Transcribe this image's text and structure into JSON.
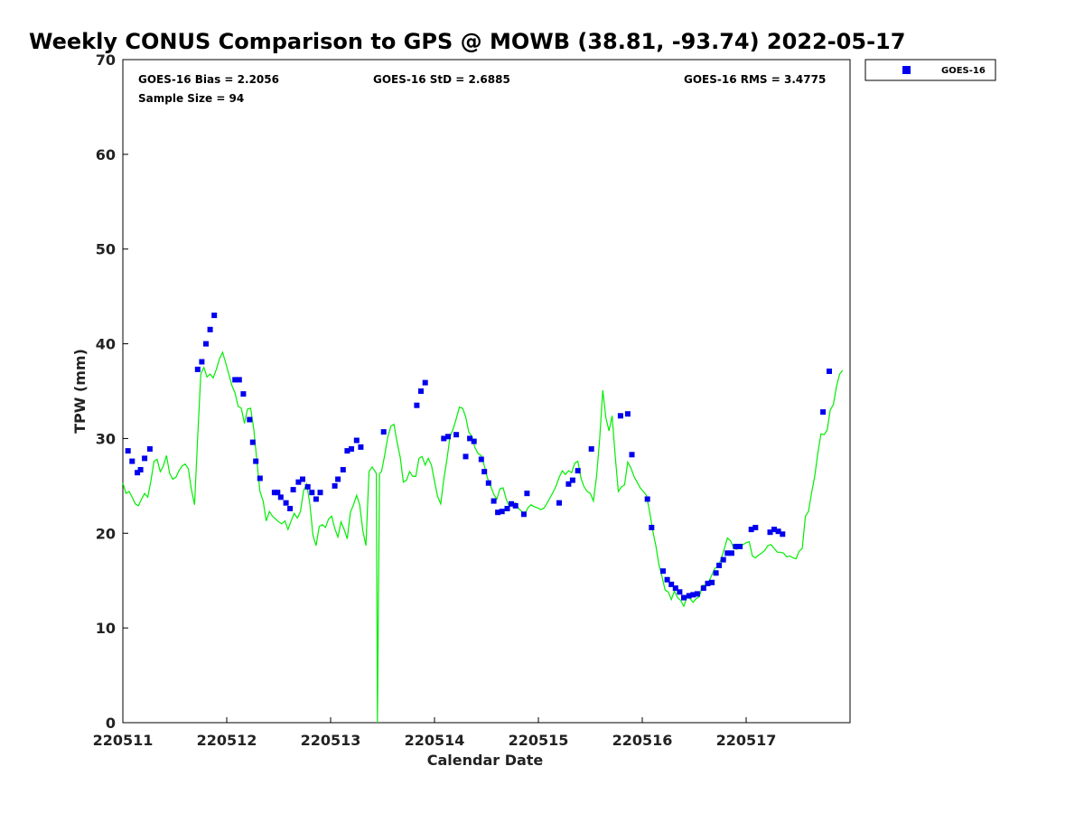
{
  "chart_data": {
    "type": "scatter",
    "title": "Weekly CONUS Comparison to GPS @ MOWB (38.81, -93.74) 2022-05-17",
    "xlabel": "Calendar Date",
    "ylabel": "TPW (mm)",
    "xlim": [
      220511,
      220518
    ],
    "ylim": [
      0,
      70
    ],
    "x_tick_values": [
      220511,
      220512,
      220513,
      220514,
      220515,
      220516,
      220517
    ],
    "x_tick_labels": [
      "220511",
      "220512",
      "220513",
      "220514",
      "220515",
      "220516",
      "220517"
    ],
    "y_tick_values": [
      0,
      10,
      20,
      30,
      40,
      50,
      60,
      70
    ],
    "y_tick_labels": [
      "0",
      "10",
      "20",
      "30",
      "40",
      "50",
      "60",
      "70"
    ],
    "grid": false,
    "legend_position": "top-right",
    "stats": {
      "bias": "GOES-16 Bias = 2.2056",
      "std": "GOES-16 StD = 2.6885",
      "rms": "GOES-16 RMS = 3.4775",
      "sample_size": "Sample Size = 94"
    },
    "series": [
      {
        "name": "GOES-16",
        "kind": "scatter",
        "color": "#0000ee",
        "marker": "square",
        "x": [
          220511.05,
          220511.09,
          220511.14,
          220511.17,
          220511.21,
          220511.26,
          220511.72,
          220511.76,
          220511.8,
          220511.84,
          220511.88,
          220512.08,
          220512.12,
          220512.16,
          220512.22,
          220512.25,
          220512.28,
          220512.32,
          220512.46,
          220512.49,
          220512.52,
          220512.57,
          220512.61,
          220512.64,
          220512.69,
          220512.73,
          220512.78,
          220512.82,
          220512.86,
          220512.9,
          220513.04,
          220513.07,
          220513.12,
          220513.16,
          220513.2,
          220513.25,
          220513.29,
          220513.51,
          220513.83,
          220513.87,
          220513.91,
          220514.09,
          220514.13,
          220514.21,
          220514.3,
          220514.34,
          220514.38,
          220514.45,
          220514.48,
          220514.52,
          220514.57,
          220514.61,
          220514.65,
          220514.7,
          220514.74,
          220514.78,
          220514.86,
          220514.89,
          220515.2,
          220515.29,
          220515.33,
          220515.38,
          220515.51,
          220515.79,
          220515.86,
          220515.9,
          220516.05,
          220516.09,
          220516.2,
          220516.24,
          220516.28,
          220516.32,
          220516.36,
          220516.4,
          220516.45,
          220516.49,
          220516.53,
          220516.59,
          220516.63,
          220516.67,
          220516.71,
          220516.74,
          220516.78,
          220516.82,
          220516.86,
          220516.9,
          220516.94,
          220517.05,
          220517.09,
          220517.23,
          220517.27,
          220517.31,
          220517.35,
          220517.74,
          220517.8
        ],
        "y": [
          28.7,
          27.6,
          26.4,
          26.7,
          27.9,
          28.9,
          37.3,
          38.1,
          40.0,
          41.5,
          43.0,
          36.2,
          36.2,
          34.7,
          32.0,
          29.6,
          27.6,
          25.8,
          24.3,
          24.3,
          23.8,
          23.2,
          22.6,
          24.6,
          25.4,
          25.7,
          24.9,
          24.3,
          23.6,
          24.3,
          25.0,
          25.7,
          26.7,
          28.7,
          28.9,
          29.8,
          29.1,
          30.7,
          33.5,
          35.0,
          35.9,
          30.0,
          30.2,
          30.4,
          28.1,
          30.0,
          29.7,
          27.8,
          26.5,
          25.3,
          23.4,
          22.2,
          22.3,
          22.6,
          23.1,
          22.9,
          22.0,
          24.2,
          23.2,
          25.2,
          25.6,
          26.6,
          28.9,
          32.4,
          32.6,
          28.3,
          23.6,
          20.6,
          16.0,
          15.1,
          14.6,
          14.2,
          13.8,
          13.2,
          13.4,
          13.5,
          13.6,
          14.2,
          14.7,
          14.8,
          15.8,
          16.6,
          17.2,
          17.9,
          17.9,
          18.6,
          18.6,
          20.4,
          20.6,
          20.1,
          20.4,
          20.2,
          19.9,
          32.8,
          37.1
        ]
      },
      {
        "kind": "line",
        "color": "#00ee00",
        "x": [
          220511.0,
          220511.03,
          220511.06,
          220511.09,
          220511.12,
          220511.15,
          220511.18,
          220511.21,
          220511.24,
          220511.27,
          220511.3,
          220511.33,
          220511.36,
          220511.39,
          220511.42,
          220511.45,
          220511.48,
          220511.51,
          220511.54,
          220511.57,
          220511.6,
          220511.63,
          220511.66,
          220511.69,
          220511.72,
          220511.75,
          220511.78,
          220511.81,
          220511.84,
          220511.87,
          220511.9,
          220511.93,
          220511.96,
          220511.99,
          220512.02,
          220512.05,
          220512.08,
          220512.11,
          220512.14,
          220512.17,
          220512.2,
          220512.23,
          220512.26,
          220512.29,
          220512.32,
          220512.35,
          220512.38,
          220512.41,
          220512.44,
          220512.47,
          220512.5,
          220512.53,
          220512.56,
          220512.59,
          220512.62,
          220512.65,
          220512.68,
          220512.71,
          220512.74,
          220512.77,
          220512.8,
          220512.83,
          220512.86,
          220512.89,
          220512.92,
          220512.95,
          220512.98,
          220513.01,
          220513.04,
          220513.07,
          220513.1,
          220513.13,
          220513.16,
          220513.19,
          220513.22,
          220513.25,
          220513.28,
          220513.31,
          220513.34,
          220513.37,
          220513.4,
          220513.43,
          220513.44,
          220513.45,
          220513.47,
          220513.49,
          220513.52,
          220513.55,
          220513.58,
          220513.61,
          220513.64,
          220513.67,
          220513.7,
          220513.73,
          220513.76,
          220513.79,
          220513.82,
          220513.85,
          220513.88,
          220513.91,
          220513.94,
          220513.97,
          220514.0,
          220514.03,
          220514.06,
          220514.09,
          220514.12,
          220514.15,
          220514.18,
          220514.21,
          220514.24,
          220514.27,
          220514.3,
          220514.33,
          220514.36,
          220514.39,
          220514.42,
          220514.45,
          220514.48,
          220514.51,
          220514.54,
          220514.57,
          220514.6,
          220514.63,
          220514.66,
          220514.69,
          220514.72,
          220514.75,
          220514.78,
          220514.81,
          220514.84,
          220514.87,
          220514.9,
          220514.93,
          220514.96,
          220514.99,
          220515.02,
          220515.05,
          220515.08,
          220515.11,
          220515.14,
          220515.17,
          220515.2,
          220515.23,
          220515.26,
          220515.29,
          220515.32,
          220515.35,
          220515.38,
          220515.41,
          220515.44,
          220515.47,
          220515.5,
          220515.53,
          220515.56,
          220515.59,
          220515.62,
          220515.65,
          220515.68,
          220515.71,
          220515.74,
          220515.77,
          220515.8,
          220515.83,
          220515.86,
          220515.89,
          220515.92,
          220515.95,
          220515.98,
          220516.01,
          220516.04,
          220516.07,
          220516.1,
          220516.13,
          220516.16,
          220516.19,
          220516.22,
          220516.25,
          220516.28,
          220516.31,
          220516.34,
          220516.37,
          220516.4,
          220516.43,
          220516.46,
          220516.49,
          220516.52,
          220516.55,
          220516.58,
          220516.61,
          220516.64,
          220516.67,
          220516.7,
          220516.73,
          220516.76,
          220516.79,
          220516.82,
          220516.85,
          220516.88,
          220516.91,
          220516.94,
          220516.97,
          220517.0,
          220517.03,
          220517.06,
          220517.09,
          220517.12,
          220517.15,
          220517.18,
          220517.21,
          220517.24,
          220517.27,
          220517.3,
          220517.33,
          220517.36,
          220517.39,
          220517.42,
          220517.45,
          220517.48,
          220517.51,
          220517.54,
          220517.57,
          220517.6,
          220517.63,
          220517.66,
          220517.69,
          220517.72,
          220517.75,
          220517.78,
          220517.81,
          220517.84,
          220517.87,
          220517.9,
          220517.93
        ],
        "y": [
          25.3,
          24.2,
          24.4,
          23.8,
          23.1,
          22.9,
          23.6,
          24.2,
          23.8,
          25.5,
          27.6,
          27.8,
          26.5,
          27.1,
          28.2,
          26.3,
          25.7,
          25.9,
          26.6,
          27.1,
          27.3,
          26.8,
          24.6,
          23.0,
          30.1,
          36.8,
          37.5,
          36.5,
          36.8,
          36.4,
          37.3,
          38.4,
          39.1,
          38.0,
          36.8,
          35.6,
          34.8,
          33.4,
          33.2,
          31.6,
          33.1,
          33.2,
          31.0,
          27.6,
          24.4,
          23.4,
          21.3,
          22.3,
          21.8,
          21.5,
          21.2,
          21.0,
          21.3,
          20.4,
          21.3,
          22.1,
          21.6,
          22.3,
          24.5,
          25.2,
          23.1,
          19.8,
          18.7,
          20.7,
          20.9,
          20.6,
          21.5,
          21.8,
          20.5,
          19.6,
          21.2,
          20.4,
          19.4,
          22.2,
          23.0,
          24.0,
          23.0,
          20.3,
          18.7,
          26.5,
          27.0,
          26.5,
          26.3,
          0.0,
          26.3,
          26.5,
          28.2,
          30.1,
          31.3,
          31.5,
          29.6,
          28.0,
          25.4,
          25.6,
          26.5,
          26.0,
          26.0,
          27.9,
          28.1,
          27.2,
          27.9,
          27.2,
          25.5,
          23.9,
          23.1,
          25.7,
          27.8,
          30.2,
          31.0,
          32.1,
          33.3,
          33.2,
          32.3,
          30.7,
          30.2,
          29.0,
          28.4,
          28.2,
          27.1,
          25.8,
          25.0,
          24.1,
          23.6,
          24.7,
          24.8,
          23.6,
          22.8,
          23.0,
          23.2,
          22.6,
          22.3,
          22.0,
          22.7,
          23.0,
          22.8,
          22.7,
          22.5,
          22.6,
          23.1,
          23.7,
          24.3,
          25.0,
          25.9,
          26.6,
          26.2,
          26.6,
          26.4,
          27.4,
          27.6,
          25.8,
          24.9,
          24.4,
          24.2,
          23.4,
          26.0,
          29.9,
          35.1,
          32.2,
          30.8,
          32.4,
          28.1,
          24.4,
          24.9,
          25.1,
          27.5,
          26.9,
          26.0,
          25.4,
          24.8,
          24.4,
          24.0,
          22.3,
          20.3,
          18.7,
          16.7,
          15.4,
          14.0,
          13.8,
          13.0,
          13.9,
          13.2,
          12.9,
          12.3,
          13.2,
          13.1,
          12.7,
          13.1,
          13.3,
          14.5,
          14.5,
          14.9,
          15.6,
          16.3,
          16.5,
          17.3,
          18.4,
          19.5,
          19.2,
          18.4,
          18.3,
          18.7,
          18.8,
          19.0,
          19.1,
          17.6,
          17.4,
          17.7,
          17.9,
          18.2,
          18.7,
          18.8,
          18.4,
          18.0,
          18.0,
          17.9,
          17.5,
          17.6,
          17.4,
          17.3,
          18.1,
          18.4,
          21.8,
          22.3,
          24.3,
          26.0,
          28.5,
          30.5,
          30.4,
          30.9,
          33.0,
          33.6,
          35.5,
          36.8,
          37.2
        ]
      }
    ]
  }
}
